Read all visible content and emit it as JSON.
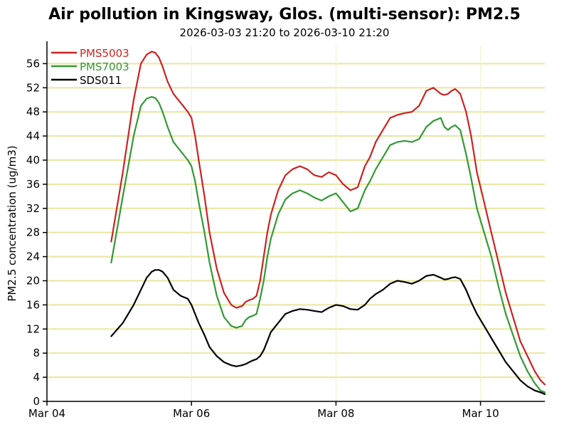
{
  "chart_data": {
    "type": "line",
    "title": "Air pollution in Kingsway, Glos. (multi-sensor): PM2.5",
    "subtitle": "2026-03-03 21:20 to 2026-03-10 21:20",
    "xlabel": "",
    "ylabel": "PM2.5 concentration (ug/m3)",
    "ylim": [
      0,
      59
    ],
    "xlim": [
      4.0,
      10.89
    ],
    "x_ticks": [
      {
        "value": 4,
        "label": "Mar 04"
      },
      {
        "value": 6,
        "label": "Mar 06"
      },
      {
        "value": 8,
        "label": "Mar 08"
      },
      {
        "value": 10,
        "label": "Mar 10"
      }
    ],
    "y_ticks": [
      0,
      4,
      8,
      12,
      16,
      20,
      24,
      28,
      32,
      36,
      40,
      44,
      48,
      52,
      56
    ],
    "grid": true,
    "legend_position": "top-left",
    "series": [
      {
        "name": "PMS5003",
        "color": "#cc2222",
        "x": [
          4.89,
          5.05,
          5.2,
          5.3,
          5.38,
          5.45,
          5.5,
          5.55,
          5.6,
          5.67,
          5.75,
          5.85,
          5.95,
          6.0,
          6.05,
          6.1,
          6.18,
          6.25,
          6.35,
          6.45,
          6.55,
          6.62,
          6.7,
          6.75,
          6.8,
          6.85,
          6.9,
          6.95,
          7.0,
          7.05,
          7.1,
          7.2,
          7.3,
          7.4,
          7.5,
          7.6,
          7.7,
          7.8,
          7.9,
          8.0,
          8.1,
          8.2,
          8.3,
          8.4,
          8.47,
          8.55,
          8.65,
          8.75,
          8.85,
          8.95,
          9.05,
          9.15,
          9.25,
          9.35,
          9.45,
          9.5,
          9.55,
          9.6,
          9.65,
          9.72,
          9.8,
          9.87,
          9.95,
          10.05,
          10.15,
          10.25,
          10.35,
          10.45,
          10.55,
          10.65,
          10.75,
          10.83,
          10.89
        ],
        "values": [
          26.5,
          38.0,
          50.0,
          56.0,
          57.5,
          58.0,
          57.8,
          57.0,
          55.5,
          53.0,
          51.0,
          49.5,
          48.0,
          47.0,
          44.0,
          40.0,
          34.0,
          28.0,
          22.0,
          18.0,
          16.0,
          15.5,
          15.8,
          16.5,
          16.8,
          17.0,
          17.5,
          20.0,
          24.0,
          28.0,
          31.0,
          35.0,
          37.5,
          38.5,
          39.0,
          38.5,
          37.5,
          37.2,
          38.0,
          37.5,
          36.0,
          35.0,
          35.5,
          39.0,
          40.5,
          43.0,
          45.0,
          47.0,
          47.5,
          47.8,
          48.0,
          49.0,
          51.5,
          52.0,
          51.0,
          50.8,
          51.0,
          51.5,
          51.8,
          51.0,
          48.0,
          44.0,
          38.0,
          33.0,
          28.0,
          23.0,
          18.0,
          14.0,
          10.0,
          7.5,
          5.0,
          3.5,
          2.8
        ]
      },
      {
        "name": "PMS7003",
        "color": "#339933",
        "x": [
          4.89,
          5.05,
          5.2,
          5.3,
          5.38,
          5.45,
          5.5,
          5.55,
          5.6,
          5.67,
          5.75,
          5.85,
          5.95,
          6.0,
          6.05,
          6.1,
          6.18,
          6.25,
          6.35,
          6.45,
          6.55,
          6.62,
          6.7,
          6.75,
          6.8,
          6.85,
          6.9,
          6.95,
          7.0,
          7.05,
          7.1,
          7.2,
          7.3,
          7.4,
          7.5,
          7.6,
          7.7,
          7.8,
          7.9,
          8.0,
          8.1,
          8.2,
          8.3,
          8.4,
          8.47,
          8.55,
          8.65,
          8.75,
          8.85,
          8.95,
          9.05,
          9.15,
          9.25,
          9.35,
          9.45,
          9.5,
          9.55,
          9.6,
          9.65,
          9.72,
          9.8,
          9.87,
          9.95,
          10.05,
          10.15,
          10.25,
          10.35,
          10.45,
          10.55,
          10.65,
          10.75,
          10.83,
          10.89
        ],
        "values": [
          23.0,
          34.0,
          44.0,
          49.0,
          50.2,
          50.5,
          50.3,
          49.5,
          48.0,
          45.5,
          43.0,
          41.5,
          40.0,
          39.0,
          36.5,
          33.0,
          28.0,
          23.0,
          17.5,
          14.0,
          12.5,
          12.2,
          12.5,
          13.5,
          14.0,
          14.2,
          14.5,
          17.0,
          20.0,
          24.0,
          27.0,
          31.0,
          33.5,
          34.5,
          35.0,
          34.5,
          33.8,
          33.3,
          34.0,
          34.5,
          33.0,
          31.5,
          32.0,
          35.0,
          36.5,
          38.5,
          40.5,
          42.5,
          43.0,
          43.2,
          43.0,
          43.5,
          45.5,
          46.5,
          47.0,
          45.5,
          45.0,
          45.5,
          45.8,
          45.0,
          41.0,
          37.0,
          32.0,
          28.0,
          24.0,
          19.0,
          14.5,
          11.0,
          7.5,
          5.0,
          3.0,
          1.8,
          1.5
        ]
      },
      {
        "name": "SDS011",
        "color": "#000000",
        "x": [
          4.89,
          5.05,
          5.2,
          5.3,
          5.38,
          5.45,
          5.5,
          5.55,
          5.6,
          5.67,
          5.75,
          5.85,
          5.95,
          6.0,
          6.05,
          6.1,
          6.18,
          6.25,
          6.35,
          6.45,
          6.55,
          6.62,
          6.7,
          6.75,
          6.8,
          6.85,
          6.9,
          6.95,
          7.0,
          7.05,
          7.1,
          7.2,
          7.3,
          7.4,
          7.5,
          7.6,
          7.7,
          7.8,
          7.9,
          8.0,
          8.1,
          8.2,
          8.3,
          8.4,
          8.47,
          8.55,
          8.65,
          8.75,
          8.85,
          8.95,
          9.05,
          9.15,
          9.25,
          9.35,
          9.45,
          9.5,
          9.55,
          9.6,
          9.65,
          9.72,
          9.8,
          9.87,
          9.95,
          10.05,
          10.15,
          10.25,
          10.35,
          10.45,
          10.55,
          10.65,
          10.75,
          10.83,
          10.89
        ],
        "values": [
          10.8,
          13.0,
          16.0,
          18.5,
          20.5,
          21.5,
          21.8,
          21.8,
          21.5,
          20.5,
          18.5,
          17.5,
          17.0,
          16.0,
          14.5,
          13.0,
          11.0,
          9.0,
          7.5,
          6.5,
          6.0,
          5.8,
          6.0,
          6.2,
          6.5,
          6.8,
          7.0,
          7.5,
          8.5,
          10.0,
          11.5,
          13.0,
          14.5,
          15.0,
          15.3,
          15.2,
          15.0,
          14.8,
          15.5,
          16.0,
          15.8,
          15.3,
          15.2,
          16.0,
          17.0,
          17.8,
          18.5,
          19.5,
          20.0,
          19.8,
          19.5,
          20.0,
          20.8,
          21.0,
          20.5,
          20.2,
          20.3,
          20.5,
          20.6,
          20.3,
          18.5,
          16.5,
          14.5,
          12.5,
          10.5,
          8.5,
          6.5,
          5.0,
          3.5,
          2.5,
          1.8,
          1.5,
          1.2
        ]
      }
    ]
  }
}
